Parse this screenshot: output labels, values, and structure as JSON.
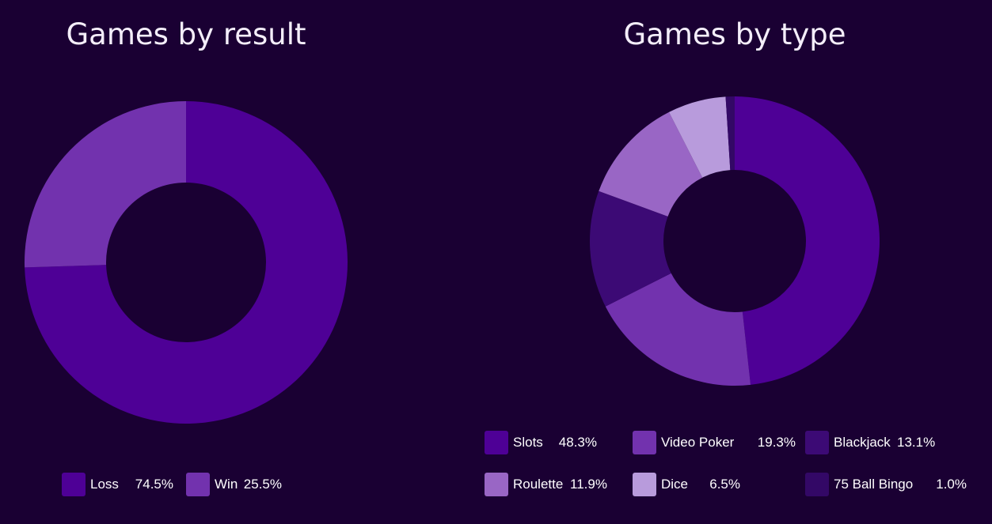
{
  "charts": [
    {
      "id": "result",
      "title": "Games by result",
      "slices": [
        {
          "label": "Loss",
          "value": 74.5,
          "value_text": "74.5%",
          "color": "#4e0096"
        },
        {
          "label": "Win",
          "value": 25.5,
          "value_text": "25.5%",
          "color": "#7232ae"
        }
      ]
    },
    {
      "id": "type",
      "title": "Games by type",
      "slices": [
        {
          "label": "Slots",
          "value": 48.3,
          "value_text": "48.3%",
          "color": "#4e0096"
        },
        {
          "label": "Video Poker",
          "value": 19.3,
          "value_text": "19.3%",
          "color": "#7232ae"
        },
        {
          "label": "Blackjack",
          "value": 13.1,
          "value_text": "13.1%",
          "color": "#3c0a75"
        },
        {
          "label": "Roulette",
          "value": 11.9,
          "value_text": "11.9%",
          "color": "#9966c5"
        },
        {
          "label": "Dice",
          "value": 6.5,
          "value_text": "6.5%",
          "color": "#b89bdc"
        },
        {
          "label": "75 Ball Bingo",
          "value": 1.0,
          "value_text": "1.0%",
          "color": "#330866"
        }
      ]
    }
  ],
  "chart_data": [
    {
      "type": "pie",
      "title": "Games by result",
      "categories": [
        "Loss",
        "Win"
      ],
      "values": [
        74.5,
        25.5
      ],
      "unit": "%",
      "legend": "bottom"
    },
    {
      "type": "pie",
      "title": "Games by type",
      "categories": [
        "Slots",
        "Video Poker",
        "Blackjack",
        "Roulette",
        "Dice",
        "75 Ball Bingo"
      ],
      "values": [
        48.3,
        19.3,
        13.1,
        11.9,
        6.5,
        1.0
      ],
      "unit": "%",
      "legend": "bottom"
    }
  ]
}
